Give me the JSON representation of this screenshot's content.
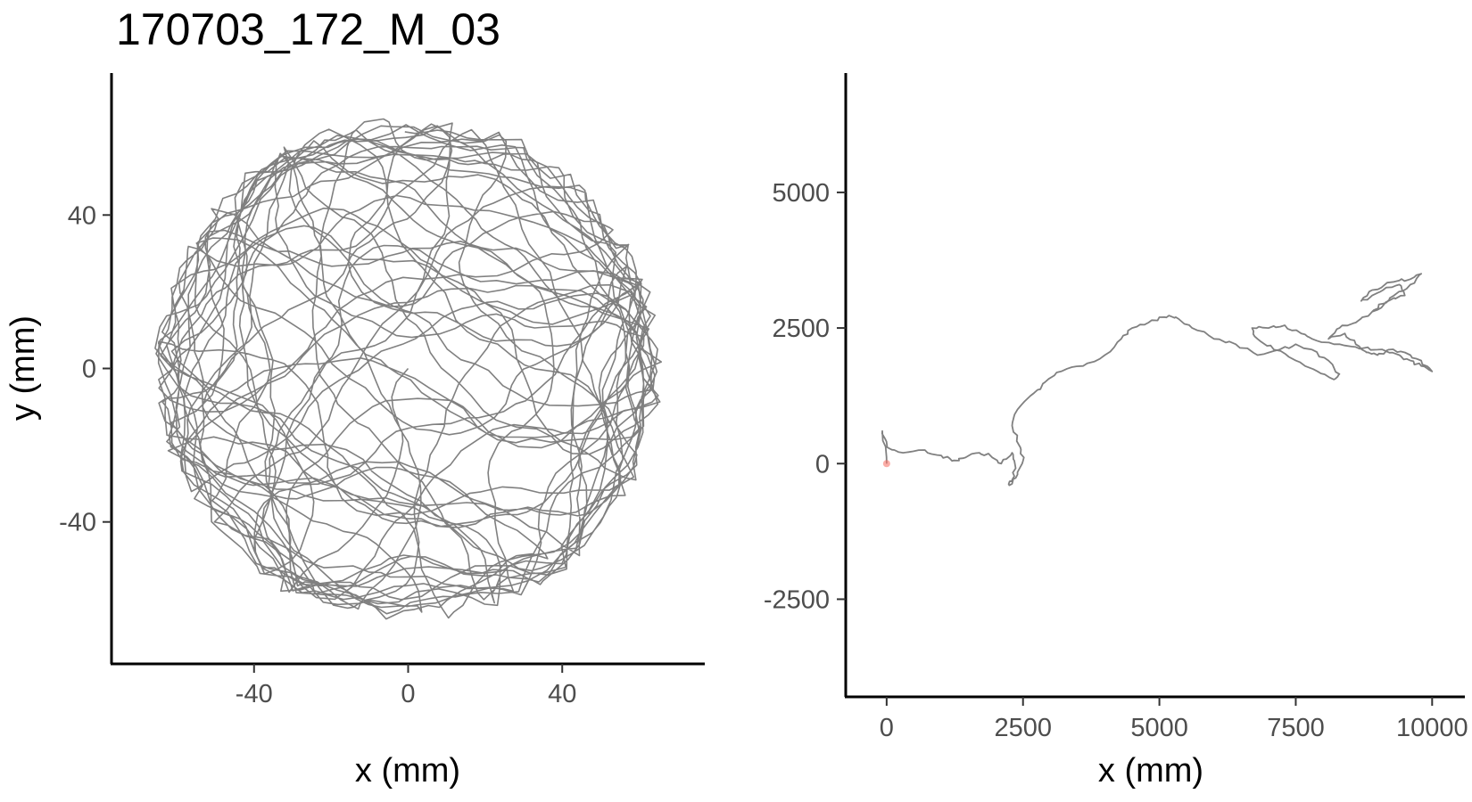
{
  "title": "170703_172_M_03",
  "chart_data": [
    {
      "type": "line",
      "panel": "left",
      "title": "",
      "xlabel": "x (mm)",
      "ylabel": "y (mm)",
      "xlim": [
        -77,
        77
      ],
      "ylim": [
        -77,
        77
      ],
      "x_ticks": [
        -40,
        0,
        40
      ],
      "y_ticks": [
        -40,
        0,
        40
      ],
      "x_tick_labels": [
        "-40",
        "0",
        "40"
      ],
      "y_tick_labels": [
        "-40",
        "0",
        "40"
      ],
      "arena_radius": 67,
      "line_color": "#808080",
      "grid": false,
      "series": [
        {
          "note_points_generated": "dense circular arena trajectory (seeded)",
          "n_segments": 2600
        }
      ]
    },
    {
      "type": "line",
      "panel": "right",
      "title": "",
      "xlabel": "x (mm)",
      "ylabel": "",
      "xlim": [
        -750,
        10600
      ],
      "ylim": [
        -4300,
        7200
      ],
      "x_ticks": [
        0,
        2500,
        5000,
        7500,
        10000
      ],
      "y_ticks": [
        -2500,
        0,
        2500,
        5000
      ],
      "x_tick_labels": [
        "0",
        "2500",
        "5000",
        "7500",
        "10000"
      ],
      "y_tick_labels": [
        "-2500",
        "0",
        "2500",
        "5000"
      ],
      "line_color": "#808080",
      "start_point": {
        "x": 0,
        "y": 0,
        "color": "#f8766d"
      },
      "grid": false,
      "series": [
        {
          "x": [
            0,
            -80,
            10,
            300,
            700,
            1000,
            1200,
            1400,
            1700,
            1900,
            2100,
            2300,
            2350,
            2300,
            2250,
            2400,
            2500,
            2450,
            2300,
            2400,
            2700,
            2900,
            3200,
            3600,
            4000,
            4300,
            4500,
            4800,
            5100,
            5300,
            5600,
            6000,
            6400,
            6800,
            7200,
            7500,
            7800,
            8100,
            8300,
            8200,
            7900,
            7500,
            7100,
            6800,
            6700,
            7000,
            7300,
            7600,
            7800,
            8200,
            8600,
            9000,
            9400,
            9600,
            9800,
            10000,
            9800,
            9500,
            9200,
            9000,
            8800,
            8600,
            8400,
            8100,
            8300,
            8600,
            8900,
            9200,
            9500,
            9400,
            9100,
            8900,
            8700,
            8900,
            9300,
            9600,
            9800,
            9600,
            9300,
            9100,
            8900
          ],
          "y": [
            0,
            600,
            300,
            200,
            250,
            150,
            50,
            100,
            200,
            150,
            0,
            200,
            0,
            -300,
            -400,
            -200,
            50,
            300,
            700,
            1000,
            1300,
            1500,
            1700,
            1800,
            2000,
            2300,
            2500,
            2600,
            2700,
            2700,
            2500,
            2300,
            2200,
            2000,
            2100,
            2200,
            2100,
            1900,
            1650,
            1550,
            1700,
            1900,
            2100,
            2300,
            2500,
            2500,
            2550,
            2400,
            2300,
            2200,
            2150,
            2100,
            2000,
            1900,
            1800,
            1700,
            1900,
            2050,
            2100,
            2000,
            2050,
            2200,
            2400,
            2300,
            2500,
            2600,
            2800,
            3000,
            3100,
            3300,
            3200,
            3100,
            3000,
            3200,
            3350,
            3400,
            3500,
            3300,
            3100,
            2950,
            2800
          ]
        }
      ]
    }
  ]
}
